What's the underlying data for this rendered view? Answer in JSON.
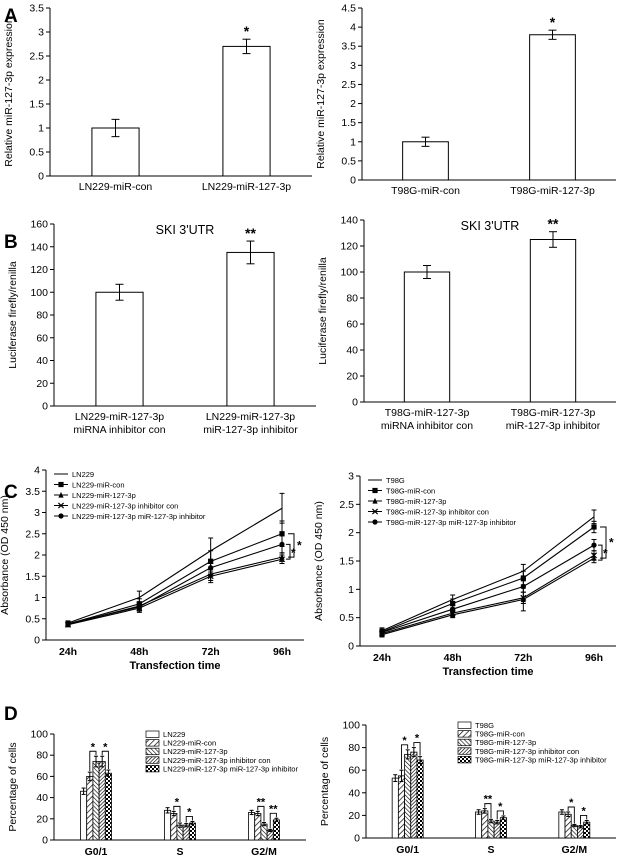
{
  "panel_labels": [
    "A",
    "B",
    "C",
    "D"
  ],
  "chart_data": [
    {
      "id": "A1",
      "type": "bar",
      "panel": "A",
      "title": "",
      "xlabel": "",
      "ylabel": "Relative miR-127-3p expression",
      "categories": [
        [
          "LN229-miR-con"
        ],
        [
          "LN229-miR-127-3p"
        ]
      ],
      "values": [
        1.0,
        2.7
      ],
      "errors": [
        0.18,
        0.15
      ],
      "significance": [
        "",
        "*"
      ],
      "ylim": [
        0,
        3.5
      ],
      "yticks": [
        0,
        0.5,
        1,
        1.5,
        2,
        2.5,
        3,
        3.5
      ],
      "ytick_labels": [
        "0",
        "0.5",
        "1",
        "1.5",
        "2",
        "2.5",
        "3",
        "3.5"
      ],
      "grid": false
    },
    {
      "id": "A2",
      "type": "bar",
      "panel": "A",
      "title": "",
      "xlabel": "",
      "ylabel": "Relative miR-127-3p expression",
      "categories": [
        [
          "T98G-miR-con"
        ],
        [
          "T98G-miR-127-3p"
        ]
      ],
      "values": [
        1.0,
        3.8
      ],
      "errors": [
        0.12,
        0.12
      ],
      "significance": [
        "",
        "*"
      ],
      "ylim": [
        0,
        4.5
      ],
      "yticks": [
        0,
        0.5,
        1,
        1.5,
        2,
        2.5,
        3,
        3.5,
        4,
        4.5
      ],
      "ytick_labels": [
        "0",
        "0.5",
        "1",
        "1.5",
        "2",
        "2.5",
        "3",
        "3.5",
        "4",
        "4.5"
      ],
      "grid": false
    },
    {
      "id": "B1",
      "type": "bar",
      "panel": "B",
      "title": "SKI 3'UTR",
      "xlabel": "",
      "ylabel": "Luciferase firefly/renilla",
      "categories": [
        [
          "LN229-miR-127-3p",
          "miRNA inhibitor con"
        ],
        [
          "LN229-miR-127-3p",
          "miR-127-3p inhibitor"
        ]
      ],
      "values": [
        100,
        135
      ],
      "errors": [
        7,
        10
      ],
      "significance": [
        "",
        "**"
      ],
      "ylim": [
        0,
        160
      ],
      "yticks": [
        0,
        20,
        40,
        60,
        80,
        100,
        120,
        140,
        160
      ],
      "ytick_labels": [
        "0",
        "20",
        "40",
        "60",
        "80",
        "100",
        "120",
        "140",
        "160"
      ],
      "grid": false
    },
    {
      "id": "B2",
      "type": "bar",
      "panel": "B",
      "title": "SKI 3'UTR",
      "xlabel": "",
      "ylabel": "Luciferase firefly/renilla",
      "categories": [
        [
          "T98G-miR-127-3p",
          "miRNA inhibitor con"
        ],
        [
          "T98G-miR-127-3p",
          "miR-127-3p inhibitor"
        ]
      ],
      "values": [
        100,
        125
      ],
      "errors": [
        5,
        6
      ],
      "significance": [
        "",
        "**"
      ],
      "ylim": [
        0,
        140
      ],
      "yticks": [
        0,
        20,
        40,
        60,
        80,
        100,
        120,
        140
      ],
      "ytick_labels": [
        "0",
        "20",
        "40",
        "60",
        "80",
        "100",
        "120",
        "140"
      ],
      "grid": false
    },
    {
      "id": "C1",
      "type": "line",
      "panel": "C",
      "title": "",
      "xlabel": "Transfection time",
      "ylabel": "Absorbance (OD 450 nm)",
      "x": [
        "24h",
        "48h",
        "72h",
        "96h"
      ],
      "ylim": [
        0,
        4
      ],
      "yticks": [
        0,
        0.5,
        1,
        1.5,
        2,
        2.5,
        3,
        3.5,
        4
      ],
      "ytick_labels": [
        "0",
        "0.5",
        "1",
        "1.5",
        "2",
        "2.5",
        "3",
        "3.5",
        "4"
      ],
      "legend": "top-left",
      "series": [
        {
          "name": "LN229",
          "marker": "none",
          "values": [
            0.4,
            1.0,
            2.1,
            3.1
          ],
          "errors": [
            0.05,
            0.15,
            0.3,
            0.35
          ]
        },
        {
          "name": "LN229-miR-con",
          "marker": "square",
          "values": [
            0.38,
            0.85,
            1.85,
            2.5
          ],
          "errors": [
            0.05,
            0.12,
            0.25,
            0.3
          ]
        },
        {
          "name": "LN229-miR-127-3p",
          "marker": "triangle",
          "values": [
            0.37,
            0.8,
            1.55,
            1.95
          ],
          "errors": [
            0.05,
            0.1,
            0.15,
            0.1
          ]
        },
        {
          "name": "LN229-miR-127-3p  inhibitor con",
          "marker": "x",
          "values": [
            0.36,
            0.75,
            1.5,
            1.9
          ],
          "errors": [
            0.05,
            0.1,
            0.15,
            0.1
          ]
        },
        {
          "name": "LN229-miR-127-3p  miR-127-3p  inhibitor",
          "marker": "circle",
          "values": [
            0.38,
            0.78,
            1.7,
            2.25
          ],
          "errors": [
            0.05,
            0.1,
            0.2,
            0.2
          ]
        }
      ],
      "significance": [
        "*",
        "*"
      ]
    },
    {
      "id": "C2",
      "type": "line",
      "panel": "C",
      "title": "",
      "xlabel": "Transfection time",
      "ylabel": "Absorbance (OD 450 nm)",
      "x": [
        "24h",
        "48h",
        "72h",
        "96h"
      ],
      "ylim": [
        0,
        3
      ],
      "yticks": [
        0,
        0.5,
        1,
        1.5,
        2,
        2.5,
        3
      ],
      "ytick_labels": [
        "0",
        "0.5",
        "1",
        "1.5",
        "2",
        "2.5",
        "3"
      ],
      "legend": "top-left",
      "series": [
        {
          "name": "T98G",
          "marker": "none",
          "values": [
            0.27,
            0.82,
            1.32,
            2.28
          ],
          "errors": [
            0.05,
            0.08,
            0.12,
            0.12
          ]
        },
        {
          "name": "T98G-miR-con",
          "marker": "square",
          "values": [
            0.25,
            0.75,
            1.2,
            2.1
          ],
          "errors": [
            0.05,
            0.08,
            0.12,
            0.1
          ]
        },
        {
          "name": "T98G-miR-127-3p",
          "marker": "triangle",
          "values": [
            0.2,
            0.55,
            0.82,
            1.55
          ],
          "errors": [
            0.04,
            0.05,
            0.2,
            0.08
          ]
        },
        {
          "name": "T98G-miR-127-3p  inhibitor con",
          "marker": "x",
          "values": [
            0.22,
            0.58,
            0.85,
            1.6
          ],
          "errors": [
            0.04,
            0.05,
            0.1,
            0.08
          ]
        },
        {
          "name": "T98G-miR-127-3p  miR-127-3p  inhibitor",
          "marker": "circle",
          "values": [
            0.24,
            0.65,
            1.05,
            1.78
          ],
          "errors": [
            0.04,
            0.06,
            0.1,
            0.1
          ]
        }
      ],
      "significance": [
        "*",
        "*"
      ]
    },
    {
      "id": "D1",
      "type": "bar",
      "panel": "D",
      "title": "",
      "xlabel": "",
      "ylabel": "Percentage of cells",
      "categories": [
        "G0/1",
        "S",
        "G2/M"
      ],
      "ylim": [
        0,
        100
      ],
      "yticks": [
        0,
        20,
        40,
        60,
        80,
        100
      ],
      "ytick_labels": [
        "0",
        "20",
        "40",
        "60",
        "80",
        "100"
      ],
      "legend": "top-right",
      "series": [
        {
          "name": "LN229",
          "values": [
            46,
            28,
            26
          ],
          "errors": [
            3,
            2.5,
            2
          ]
        },
        {
          "name": "LN229-miR-con",
          "values": [
            60,
            25,
            25
          ],
          "errors": [
            4,
            2,
            2
          ]
        },
        {
          "name": "LN229-miR-127-3p",
          "values": [
            74,
            14,
            15
          ],
          "errors": [
            5,
            2,
            1.5
          ]
        },
        {
          "name": "LN229-miR-127-3p inhibitor con",
          "values": [
            74,
            14,
            9
          ],
          "errors": [
            5,
            1.5,
            1
          ]
        },
        {
          "name": "LN229-miR-127-3p miR-127-3p inhibitor",
          "values": [
            63,
            16,
            19
          ],
          "errors": [
            3,
            1.5,
            1.5
          ]
        }
      ],
      "significance": {
        "G0/1": [
          "*",
          "*"
        ],
        "S": [
          "*",
          "*"
        ],
        "G2/M": [
          "**",
          "**"
        ]
      }
    },
    {
      "id": "D2",
      "type": "bar",
      "panel": "D",
      "title": "",
      "xlabel": "",
      "ylabel": "Percentage of cells",
      "categories": [
        "G0/1",
        "S",
        "G2/M"
      ],
      "ylim": [
        0,
        100
      ],
      "yticks": [
        0,
        20,
        40,
        60,
        80,
        100
      ],
      "ytick_labels": [
        "0",
        "20",
        "40",
        "60",
        "80",
        "100"
      ],
      "legend": "top-right",
      "series": [
        {
          "name": "T98G",
          "values": [
            53,
            23,
            23
          ],
          "errors": [
            3,
            2,
            2
          ]
        },
        {
          "name": "T98G-miR-con",
          "values": [
            55,
            24,
            21
          ],
          "errors": [
            5,
            2,
            2
          ]
        },
        {
          "name": "T98G-miR-127-3p",
          "values": [
            74,
            15,
            11
          ],
          "errors": [
            4,
            1.5,
            1
          ]
        },
        {
          "name": "T98G-miR-127-3p inhibitor con",
          "values": [
            76,
            14,
            10
          ],
          "errors": [
            4,
            1.5,
            1
          ]
        },
        {
          "name": "T98G-miR-127-3p miR-127-3p inhibitor",
          "values": [
            69,
            18,
            14
          ],
          "errors": [
            3,
            1.5,
            1.5
          ]
        }
      ],
      "significance": {
        "G0/1": [
          "*",
          "*"
        ],
        "S": [
          "**",
          "*"
        ],
        "G2/M": [
          "*",
          "*"
        ]
      }
    }
  ]
}
